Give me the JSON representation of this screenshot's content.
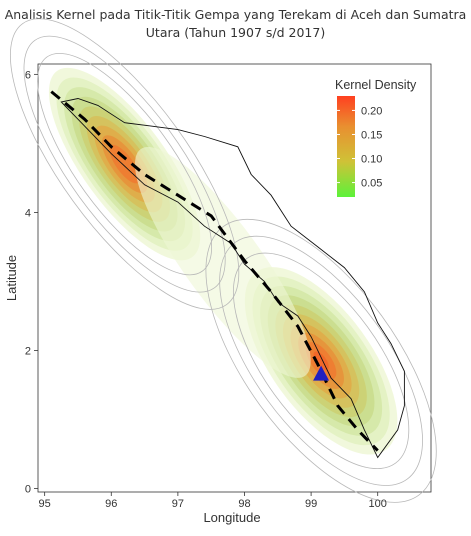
{
  "title_line1": "Analisis Kernel pada Titik-Titik Gempa yang Terekam di Aceh dan Sumatra",
  "title_line2": "Utara (Tahun 1907 s/d 2017)",
  "chart_data": {
    "type": "heatmap",
    "xlabel": "Longitude",
    "ylabel": "Latitude",
    "xlim": [
      94.9,
      100.8
    ],
    "ylim": [
      -0.05,
      6.15
    ],
    "x_ticks": [
      95,
      96,
      97,
      98,
      99,
      100
    ],
    "y_ticks": [
      0,
      2,
      4,
      6
    ],
    "legend": {
      "title": "Kernel Density",
      "position": "top-right",
      "ticks": [
        0.05,
        0.1,
        0.15,
        0.2
      ],
      "labels": [
        "0.05",
        "0.10",
        "0.15",
        "0.20"
      ],
      "range": [
        0.02,
        0.23
      ],
      "colors": [
        "#5cf23a",
        "#cfc237",
        "#e98f30",
        "#ff4020"
      ]
    },
    "density_peaks": [
      {
        "x": 96.2,
        "y": 4.7,
        "value": 0.19
      },
      {
        "x": 99.15,
        "y": 1.85,
        "value": 0.22
      }
    ],
    "fault_line": [
      [
        95.1,
        5.75
      ],
      [
        95.6,
        5.35
      ],
      [
        96.0,
        4.95
      ],
      [
        96.5,
        4.55
      ],
      [
        97.0,
        4.25
      ],
      [
        97.5,
        3.95
      ],
      [
        98.0,
        3.3
      ],
      [
        98.4,
        2.85
      ],
      [
        98.8,
        2.35
      ],
      [
        99.1,
        1.8
      ],
      [
        99.4,
        1.2
      ],
      [
        99.7,
        0.85
      ],
      [
        100.0,
        0.55
      ]
    ],
    "coastline_outline": [
      [
        95.25,
        5.6
      ],
      [
        95.5,
        5.65
      ],
      [
        95.8,
        5.55
      ],
      [
        96.2,
        5.3
      ],
      [
        96.6,
        5.25
      ],
      [
        97.0,
        5.2
      ],
      [
        97.4,
        5.1
      ],
      [
        97.9,
        4.95
      ],
      [
        98.1,
        4.55
      ],
      [
        98.4,
        4.25
      ],
      [
        98.7,
        3.8
      ],
      [
        99.1,
        3.5
      ],
      [
        99.5,
        3.2
      ],
      [
        99.8,
        2.85
      ],
      [
        100.0,
        2.4
      ],
      [
        100.2,
        2.1
      ],
      [
        100.4,
        1.7
      ],
      [
        100.4,
        1.2
      ],
      [
        100.3,
        0.85
      ],
      [
        100.0,
        0.45
      ],
      [
        99.8,
        0.85
      ],
      [
        99.6,
        1.3
      ],
      [
        99.3,
        1.6
      ],
      [
        99.0,
        2.2
      ],
      [
        98.8,
        2.5
      ],
      [
        98.5,
        2.7
      ],
      [
        98.3,
        3.0
      ],
      [
        98.0,
        3.25
      ],
      [
        97.8,
        3.55
      ],
      [
        97.4,
        3.8
      ],
      [
        97.0,
        4.15
      ],
      [
        96.5,
        4.4
      ],
      [
        96.0,
        4.85
      ],
      [
        95.6,
        5.25
      ],
      [
        95.25,
        5.6
      ]
    ],
    "marker": {
      "shape": "triangle",
      "x": 99.15,
      "y": 1.65,
      "color": "#2020c0"
    },
    "grid": false,
    "background": "#ffffff"
  }
}
